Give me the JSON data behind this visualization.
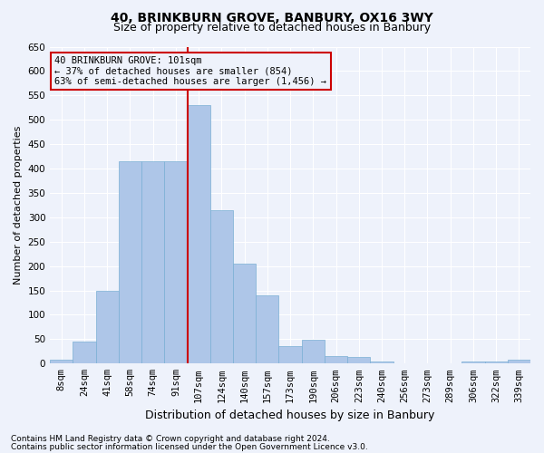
{
  "title1": "40, BRINKBURN GROVE, BANBURY, OX16 3WY",
  "title2": "Size of property relative to detached houses in Banbury",
  "xlabel": "Distribution of detached houses by size in Banbury",
  "ylabel": "Number of detached properties",
  "categories": [
    "8sqm",
    "24sqm",
    "41sqm",
    "58sqm",
    "74sqm",
    "91sqm",
    "107sqm",
    "124sqm",
    "140sqm",
    "157sqm",
    "173sqm",
    "190sqm",
    "206sqm",
    "223sqm",
    "240sqm",
    "256sqm",
    "273sqm",
    "289sqm",
    "306sqm",
    "322sqm",
    "339sqm"
  ],
  "values": [
    8,
    45,
    150,
    415,
    415,
    415,
    530,
    315,
    205,
    140,
    35,
    48,
    15,
    13,
    5,
    0,
    0,
    0,
    5,
    5,
    8
  ],
  "bar_color": "#aec6e8",
  "bar_edge_color": "#7aafd4",
  "vline_color": "#cc0000",
  "annotation_line1": "40 BRINKBURN GROVE: 101sqm",
  "annotation_line2": "← 37% of detached houses are smaller (854)",
  "annotation_line3": "63% of semi-detached houses are larger (1,456) →",
  "annotation_box_color": "#cc0000",
  "ylim": [
    0,
    650
  ],
  "yticks": [
    0,
    50,
    100,
    150,
    200,
    250,
    300,
    350,
    400,
    450,
    500,
    550,
    600,
    650
  ],
  "footnote1": "Contains HM Land Registry data © Crown copyright and database right 2024.",
  "footnote2": "Contains public sector information licensed under the Open Government Licence v3.0.",
  "bg_color": "#eef2fb",
  "grid_color": "#ffffff",
  "title1_fontsize": 10,
  "title2_fontsize": 9,
  "ylabel_fontsize": 8,
  "xlabel_fontsize": 9,
  "tick_fontsize": 7.5,
  "annot_fontsize": 7.5,
  "footnote_fontsize": 6.5
}
